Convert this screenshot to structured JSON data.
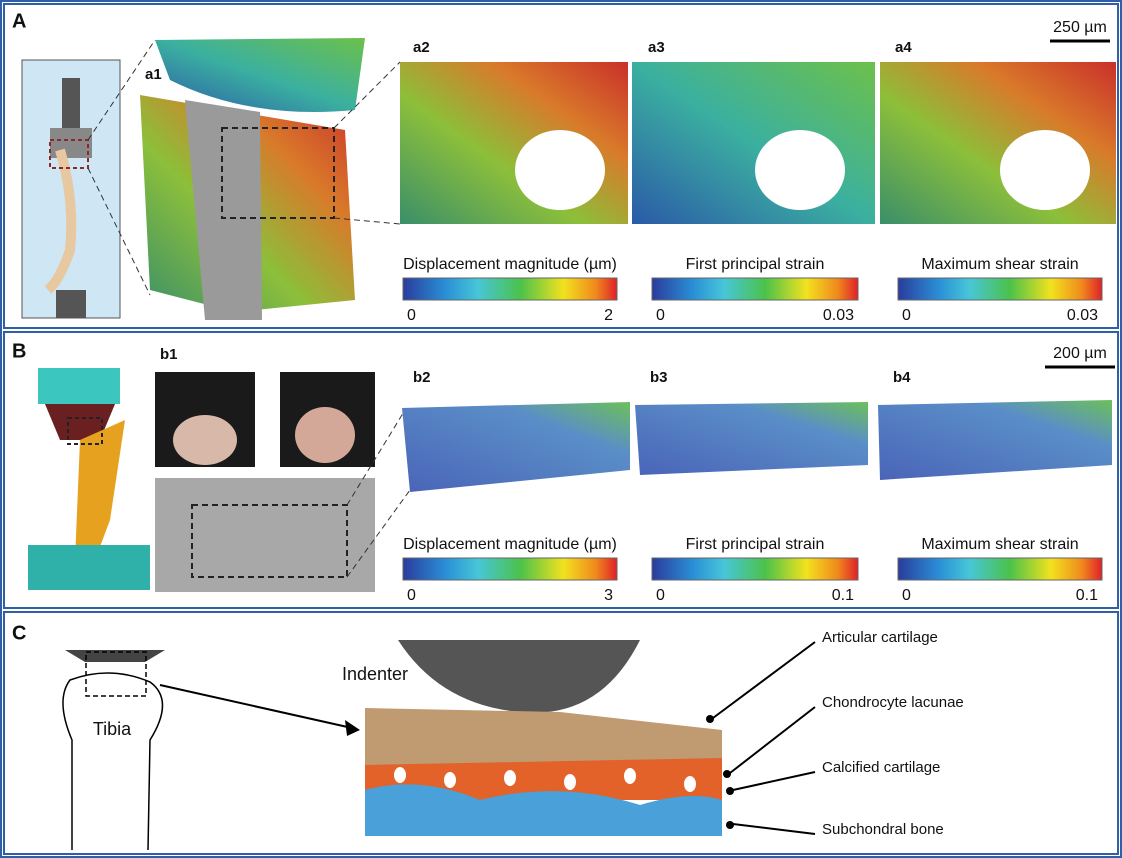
{
  "panels": [
    {
      "label": "A",
      "scale_bar": "250 µm",
      "subpanels": [
        "a1",
        "a2",
        "a3",
        "a4"
      ],
      "colorbars": [
        {
          "title": "Displacement magnitude (µm)",
          "ticks": [
            0,
            2
          ]
        },
        {
          "title": "First principal strain",
          "ticks": [
            0,
            0.03
          ]
        },
        {
          "title": "Maximum shear strain",
          "ticks": [
            0,
            0.03
          ]
        }
      ]
    },
    {
      "label": "B",
      "scale_bar": "200 µm",
      "subpanels": [
        "b1",
        "b2",
        "b3",
        "b4"
      ],
      "colorbars": [
        {
          "title": "Displacement magnitude (µm)",
          "ticks": [
            0,
            3
          ]
        },
        {
          "title": "First principal strain",
          "ticks": [
            0,
            0.1
          ]
        },
        {
          "title": "Maximum shear strain",
          "ticks": [
            0,
            0.1
          ]
        }
      ]
    },
    {
      "label": "C",
      "indenter": "Indenter",
      "tibia": "Tibia",
      "annotations": [
        "Articular cartilage",
        "Chondrocyte lacunae",
        "Calcified cartilage",
        "Subchondral bone"
      ]
    }
  ]
}
